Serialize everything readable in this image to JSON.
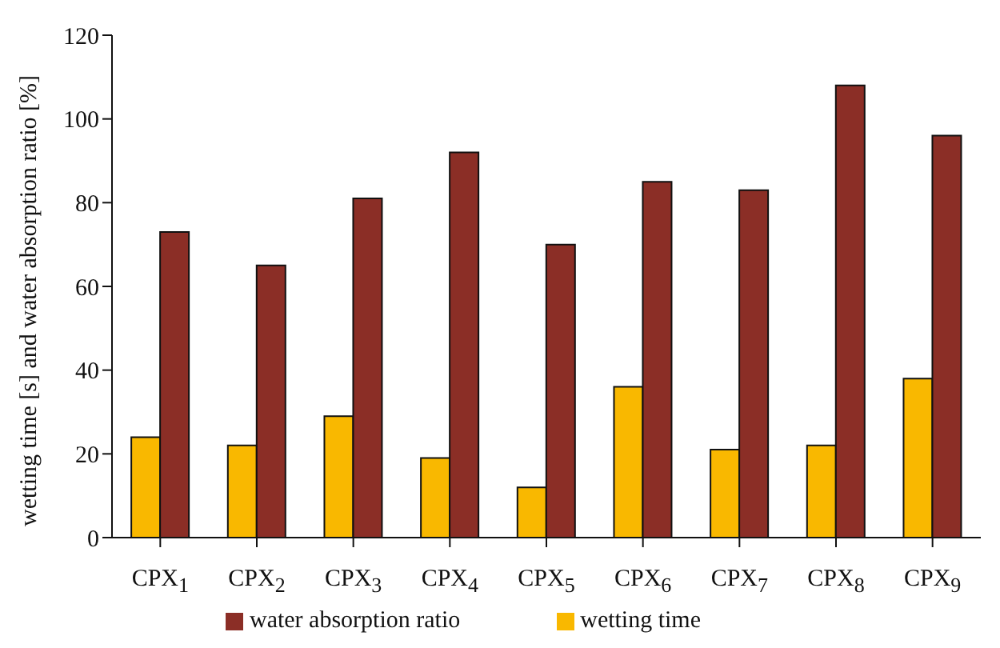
{
  "chart_data": {
    "type": "bar",
    "ylabel": "wetting time [s]    and    water absorption ratio [%]",
    "categories": [
      "CPX$_{1}$",
      "CPX$_{2}$",
      "CPX$_{3}$",
      "CPX$_{4}$",
      "CPX$_{5}$",
      "CPX$_{6}$",
      "CPX$_{7}$",
      "CPX$_{8}$",
      "CPX$_{9}$"
    ],
    "series": [
      {
        "name": "wetting time",
        "color": "#f9b800",
        "values": [
          24,
          22,
          29,
          19,
          12,
          36,
          21,
          22,
          38
        ]
      },
      {
        "name": "water absorption ratio",
        "color": "#8b2e26",
        "values": [
          73,
          65,
          81,
          92,
          70,
          85,
          83,
          108,
          96
        ]
      }
    ],
    "ylim": [
      0,
      120
    ],
    "yticks": [
      0,
      20,
      40,
      60,
      80,
      100,
      120
    ],
    "grid": false,
    "legend": "bottom"
  }
}
